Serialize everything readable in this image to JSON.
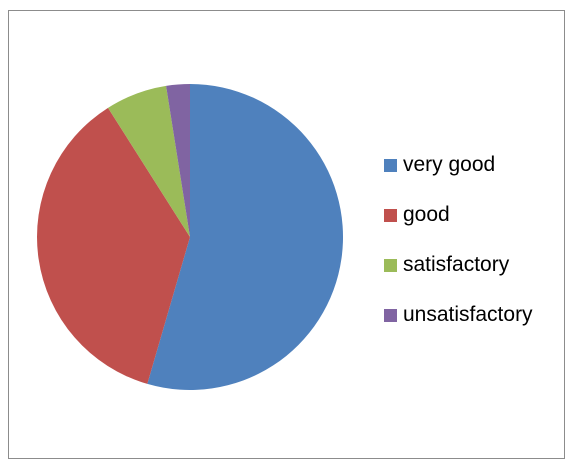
{
  "chart_data": {
    "type": "pie",
    "title": "",
    "categories": [
      "very good",
      "good",
      "satisfactory",
      "unsatisfactory"
    ],
    "values": [
      54.5,
      36.5,
      6.5,
      2.5
    ],
    "colors": [
      "#4F81BD",
      "#C0504D",
      "#9BBB59",
      "#8064A2"
    ],
    "start_angle": "12 o'clock",
    "direction": "clockwise",
    "legend_placement": "right"
  }
}
